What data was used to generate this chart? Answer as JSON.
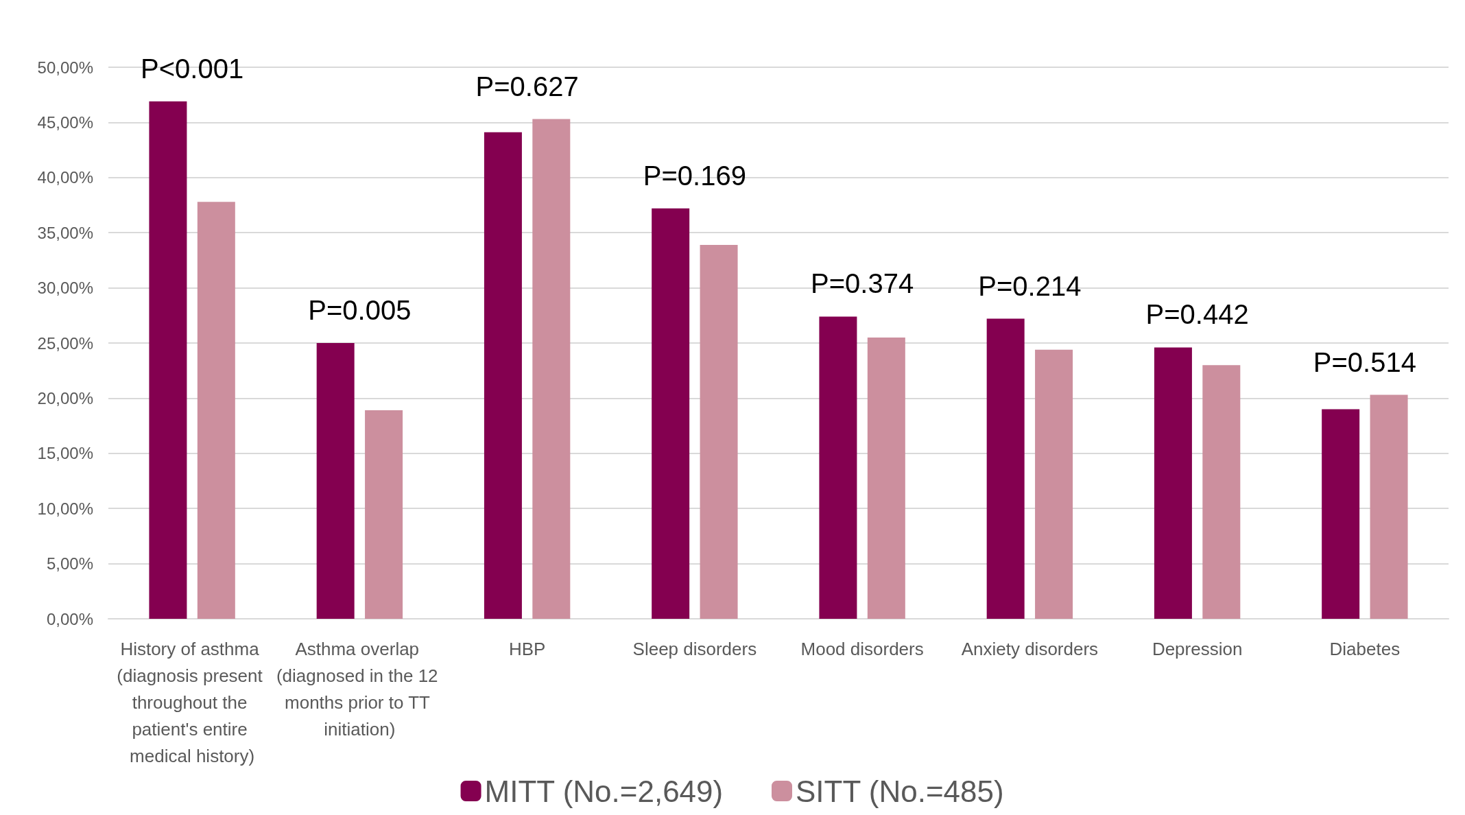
{
  "chart_data": {
    "type": "bar",
    "categories": [
      "History of asthma (diagnosis present throughout the patient's entire medical history)",
      "Asthma overlap (diagnosed in the 12 months prior to TT initiation)",
      "HBP",
      "Sleep disorders",
      "Mood disorders",
      "Anxiety disorders",
      "Depression",
      "Diabetes"
    ],
    "series": [
      {
        "name": "MITT (No.=2,649)",
        "color": "#840050",
        "values": [
          46.9,
          25.0,
          44.1,
          37.2,
          27.4,
          27.2,
          24.6,
          19.0
        ]
      },
      {
        "name": "SITT (No.=485)",
        "color": "#cc8f9e",
        "values": [
          37.8,
          18.9,
          45.3,
          33.9,
          25.5,
          24.4,
          23.0,
          20.3
        ]
      }
    ],
    "ylim": [
      0,
      50
    ],
    "yticks": [
      {
        "value": 0,
        "label": "0,00%"
      },
      {
        "value": 5,
        "label": "5,00%"
      },
      {
        "value": 10,
        "label": "10,00%"
      },
      {
        "value": 15,
        "label": "15,00%"
      },
      {
        "value": 20,
        "label": "20,00%"
      },
      {
        "value": 25,
        "label": "25,00%"
      },
      {
        "value": 30,
        "label": "30,00%"
      },
      {
        "value": 35,
        "label": "35,00%"
      },
      {
        "value": 40,
        "label": "40,00%"
      },
      {
        "value": 45,
        "label": "45,00%"
      },
      {
        "value": 50,
        "label": "50,00%"
      }
    ],
    "annotations": [
      "P<0.001",
      "P=0.005",
      "P=0.627",
      "P=0.169",
      "P=0.374",
      "P=0.214",
      "P=0.442",
      "P=0.514"
    ],
    "grid": "y",
    "legend": "bottom"
  }
}
